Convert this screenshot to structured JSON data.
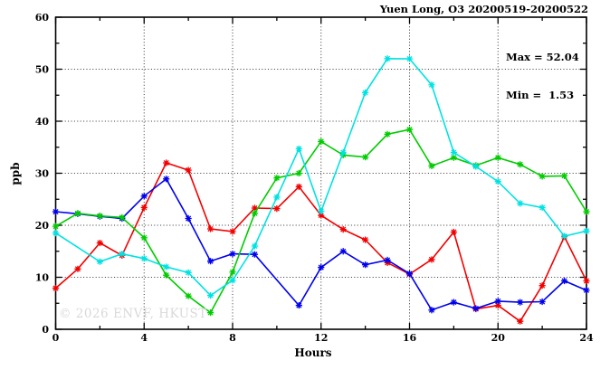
{
  "header": {
    "title": "Yuen Long, O3 20200519-20200522"
  },
  "annotations": {
    "max_label": "Max = 52.04",
    "min_label": "Min =  1.53"
  },
  "watermark": "© 2026 ENVF, HKUST",
  "axes": {
    "x_title": "Hours",
    "y_title": "ppb"
  },
  "chart_data": {
    "type": "line",
    "title": "Yuen Long, O3 20200519-20200522",
    "xlabel": "Hours",
    "ylabel": "ppb",
    "xlim": [
      0,
      24
    ],
    "ylim": [
      0,
      60
    ],
    "x_major_ticks": [
      0,
      4,
      8,
      12,
      16,
      20,
      24
    ],
    "x_minor_ticks": [
      2,
      6,
      10,
      14,
      18,
      22
    ],
    "y_major_ticks": [
      0,
      10,
      20,
      30,
      40,
      50,
      60
    ],
    "y_minor_ticks": [
      5,
      15,
      25,
      35,
      45,
      55
    ],
    "grid": true,
    "legend": "none",
    "max_value": 52.04,
    "min_value": 1.53,
    "x": [
      0,
      1,
      2,
      3,
      4,
      5,
      6,
      7,
      8,
      9,
      10,
      11,
      12,
      13,
      14,
      15,
      16,
      17,
      18,
      19,
      20,
      21,
      22,
      23,
      24
    ],
    "series": [
      {
        "name": "day-red",
        "color": "#f20000",
        "values": [
          7.9,
          11.6,
          16.6,
          14.2,
          23.4,
          32.0,
          30.6,
          19.3,
          18.8,
          23.3,
          23.2,
          27.4,
          21.9,
          19.2,
          17.2,
          12.8,
          10.6,
          13.4,
          18.7,
          3.9,
          4.6,
          1.53,
          8.4,
          17.8,
          9.3
        ]
      },
      {
        "name": "day-blue",
        "color": "#0000ee",
        "values": [
          22.6,
          22.2,
          21.7,
          21.3,
          25.6,
          28.9,
          21.3,
          13.1,
          14.5,
          14.4,
          null,
          4.6,
          11.9,
          15.0,
          12.4,
          13.3,
          10.7,
          3.7,
          5.2,
          4.0,
          5.4,
          5.2,
          5.3,
          9.3,
          7.5
        ]
      },
      {
        "name": "day-green",
        "color": "#00cc00",
        "values": [
          19.8,
          22.3,
          21.8,
          21.5,
          17.6,
          10.4,
          6.4,
          3.2,
          11.0,
          22.3,
          29.1,
          30.0,
          36.1,
          33.5,
          33.1,
          37.5,
          38.4,
          31.4,
          33.0,
          31.5,
          33.0,
          31.7,
          29.4,
          29.5,
          22.6
        ]
      },
      {
        "name": "day-cyan",
        "color": "#00e2e2",
        "values": [
          18.5,
          null,
          13.0,
          14.5,
          13.6,
          12.0,
          10.9,
          6.5,
          9.4,
          16.0,
          25.4,
          34.7,
          22.7,
          34.0,
          45.5,
          52.04,
          52.0,
          47.0,
          34.0,
          31.3,
          28.4,
          24.2,
          23.4,
          17.9,
          18.9
        ]
      }
    ]
  }
}
